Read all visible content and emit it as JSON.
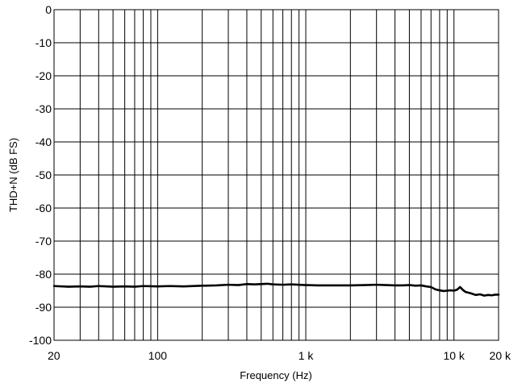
{
  "chart_data": {
    "type": "line",
    "title": "",
    "xlabel": "Frequency (Hz)",
    "ylabel": "THD+N (dB FS)",
    "x_scale": "log",
    "xlim": [
      20,
      20000
    ],
    "ylim": [
      -100,
      0
    ],
    "grid": true,
    "x_ticks": [
      {
        "value": 20,
        "label": "20"
      },
      {
        "value": 100,
        "label": "100"
      },
      {
        "value": 1000,
        "label": "1 k"
      },
      {
        "value": 10000,
        "label": "10 k"
      },
      {
        "value": 20000,
        "label": "20 k"
      }
    ],
    "y_ticks": [
      {
        "value": 0,
        "label": "0"
      },
      {
        "value": -10,
        "label": "-10"
      },
      {
        "value": -20,
        "label": "-20"
      },
      {
        "value": -30,
        "label": "-30"
      },
      {
        "value": -40,
        "label": "-40"
      },
      {
        "value": -50,
        "label": "-50"
      },
      {
        "value": -60,
        "label": "-60"
      },
      {
        "value": -70,
        "label": "-70"
      },
      {
        "value": -80,
        "label": "-80"
      },
      {
        "value": -90,
        "label": "-90"
      },
      {
        "value": -100,
        "label": "-100"
      }
    ],
    "x_gridlines": [
      20,
      30,
      40,
      50,
      60,
      70,
      80,
      90,
      100,
      200,
      300,
      400,
      500,
      600,
      700,
      800,
      900,
      1000,
      2000,
      3000,
      4000,
      5000,
      6000,
      7000,
      8000,
      9000,
      10000,
      20000
    ],
    "series": [
      {
        "color": "#000000",
        "x": [
          20,
          25,
          30,
          35,
          40,
          50,
          60,
          70,
          80,
          100,
          120,
          150,
          200,
          250,
          300,
          350,
          400,
          450,
          500,
          550,
          600,
          700,
          800,
          1000,
          1200,
          1500,
          2000,
          2500,
          3000,
          3500,
          4000,
          4500,
          5000,
          5500,
          6000,
          6500,
          7000,
          7500,
          8000,
          8500,
          9000,
          9500,
          10000,
          10500,
          11000,
          11500,
          12000,
          13000,
          14000,
          15000,
          16000,
          17000,
          18000,
          19000,
          20000
        ],
        "y": [
          -83.6,
          -83.8,
          -83.7,
          -83.8,
          -83.6,
          -83.8,
          -83.7,
          -83.8,
          -83.6,
          -83.7,
          -83.6,
          -83.7,
          -83.5,
          -83.4,
          -83.2,
          -83.3,
          -83.0,
          -83.1,
          -83.0,
          -82.9,
          -83.1,
          -83.2,
          -83.1,
          -83.3,
          -83.4,
          -83.4,
          -83.4,
          -83.3,
          -83.2,
          -83.3,
          -83.4,
          -83.4,
          -83.3,
          -83.5,
          -83.4,
          -83.7,
          -83.9,
          -84.6,
          -84.9,
          -85.1,
          -85.0,
          -84.9,
          -85.0,
          -84.7,
          -83.9,
          -84.8,
          -85.4,
          -85.8,
          -86.3,
          -86.1,
          -86.5,
          -86.3,
          -86.4,
          -86.2,
          -86.2
        ]
      }
    ]
  }
}
